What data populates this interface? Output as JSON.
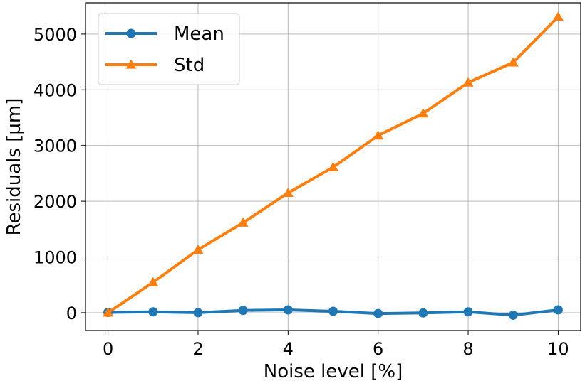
{
  "chart_data": {
    "type": "line",
    "xlabel": "Noise level [%]",
    "ylabel": "Residuals [µm]",
    "xlim": [
      -0.5,
      10.5
    ],
    "ylim": [
      -320,
      5560
    ],
    "xticks": [
      0,
      2,
      4,
      6,
      8,
      10
    ],
    "yticks": [
      0,
      1000,
      2000,
      3000,
      4000,
      5000
    ],
    "grid": true,
    "legend_position": "top-left",
    "x": [
      0,
      1,
      2,
      3,
      4,
      5,
      6,
      7,
      8,
      9,
      10
    ],
    "series": [
      {
        "name": "Mean",
        "color": "#1f77b4",
        "marker": "circle",
        "values": [
          5,
          15,
          0,
          40,
          50,
          25,
          -15,
          -5,
          15,
          -45,
          50
        ]
      },
      {
        "name": "Std",
        "color": "#ff7f0e",
        "marker": "triangle",
        "values": [
          0,
          545,
          1130,
          1615,
          2150,
          2610,
          3180,
          3575,
          4130,
          4490,
          5310
        ]
      }
    ]
  }
}
